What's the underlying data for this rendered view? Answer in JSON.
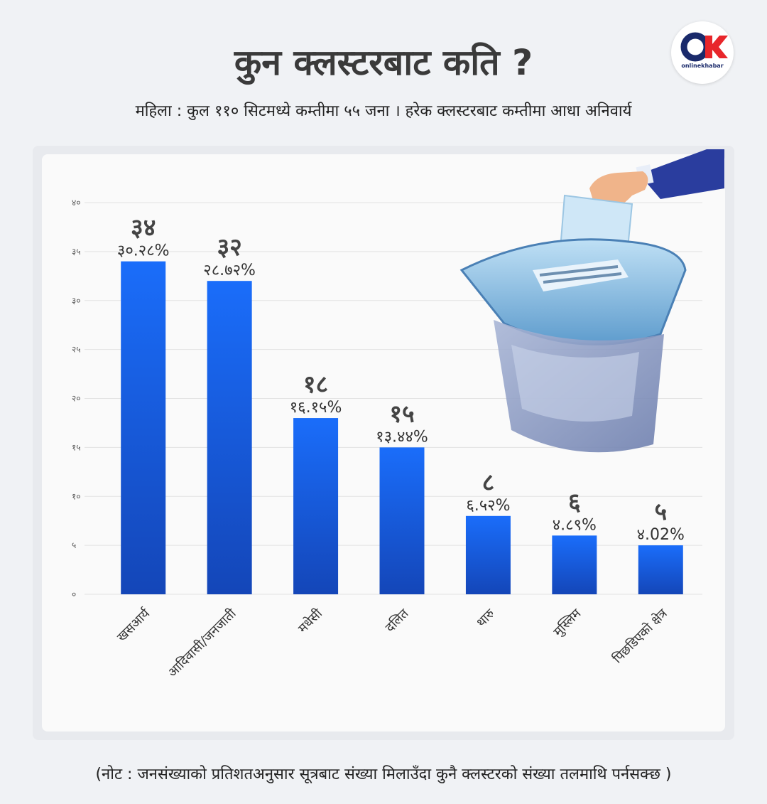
{
  "header": {
    "title": "कुन क्लस्टरबाट कति ?",
    "subtitle": "महिला : कुल ११० सिटमध्ये कम्तीमा ५५ जना । हरेक क्लस्टरबाट कम्तीमा आधा अनिवार्य"
  },
  "logo": {
    "text": "onlinekhabar",
    "icon": "onlinekhabar-logo",
    "brand_color": "#e8262b",
    "brand_dark": "#1a2a6b"
  },
  "footer": {
    "note": "(नोट : जनसंख्याको प्रतिशतअनुसार सूत्रबाट संख्या मिलाउँदा कुनै क्लस्टरको संख्या तलमाथि पर्नसक्छ )"
  },
  "illustration": {
    "icon": "ballot-box-icon"
  },
  "chart_data": {
    "type": "bar",
    "categories": [
      "खसआर्य",
      "आदिवासी/जनजाती",
      "मधेसी",
      "दलित",
      "थारु",
      "मुस्लिम",
      "पिछडिएको क्षेत्र"
    ],
    "values": [
      34,
      32,
      18,
      15,
      8,
      6,
      5
    ],
    "value_labels": [
      "३४",
      "३२",
      "१८",
      "१५",
      "८",
      "६",
      "५"
    ],
    "percent_labels": [
      "३०.२८%",
      "२८.७२%",
      "१६.१५%",
      "१३.४४%",
      "६.५२%",
      "४.८९%",
      "४.02%"
    ],
    "yticks": [
      0,
      5,
      10,
      15,
      20,
      25,
      30,
      35,
      40
    ],
    "ytick_labels": [
      "०",
      "५",
      "१०",
      "१५",
      "२०",
      "२५",
      "३०",
      "३५",
      "४०"
    ],
    "ylim": [
      0,
      40
    ],
    "grid": true,
    "bar_color_top": "#1a6dfa",
    "bar_color_bottom": "#1446b8"
  }
}
